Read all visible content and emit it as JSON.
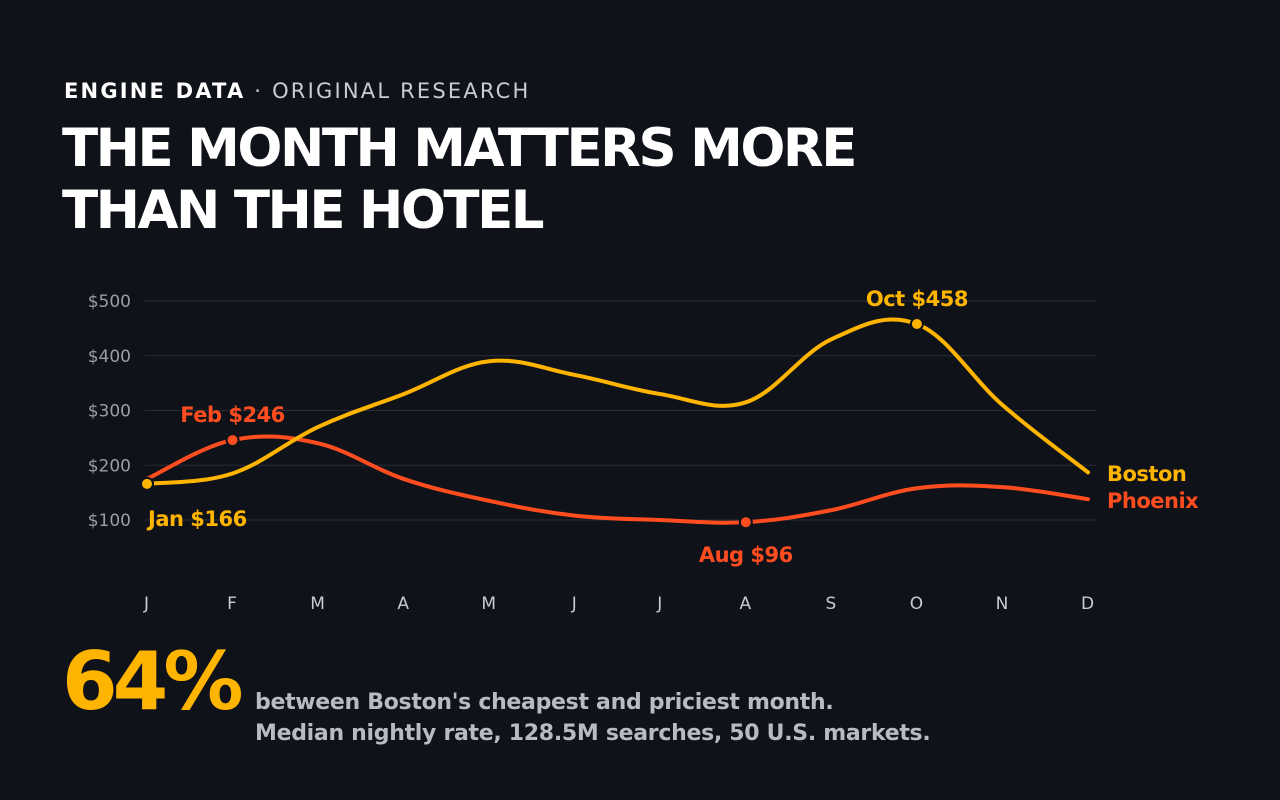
{
  "header": {
    "brand": "ENGINE DATA",
    "separator": "·",
    "section": "ORIGINAL RESEARCH",
    "title_line1": "THE MONTH MATTERS MORE",
    "title_line2": "THAN THE HOTEL"
  },
  "colors": {
    "background": "#10121a",
    "boston": "#ffb400",
    "phoenix": "#ff4d1f",
    "grid": "#2a2d36",
    "tick": "#9a9ea8",
    "month_tick": "#c9ccd3"
  },
  "chart_data": {
    "type": "line",
    "title": "",
    "xlabel": "",
    "ylabel": "",
    "categories": [
      "J",
      "F",
      "M",
      "A",
      "M",
      "J",
      "J",
      "A",
      "S",
      "O",
      "N",
      "D"
    ],
    "ylim": [
      100,
      500
    ],
    "yticks": [
      100,
      200,
      300,
      400,
      500
    ],
    "ytick_labels": [
      "$100",
      "$200",
      "$300",
      "$400",
      "$500"
    ],
    "grid": true,
    "legend": "end-of-line labels",
    "series": [
      {
        "name": "Boston",
        "color": "#ffb400",
        "values": [
          166,
          185,
          270,
          330,
          390,
          365,
          330,
          315,
          430,
          458,
          310,
          187
        ]
      },
      {
        "name": "Phoenix",
        "color": "#ff4d1f",
        "values": [
          175,
          246,
          240,
          175,
          135,
          108,
          100,
          96,
          118,
          158,
          160,
          138
        ]
      }
    ],
    "annotations": [
      {
        "series": "Boston",
        "index": 0,
        "label": "Jan $166",
        "placement": "below-right"
      },
      {
        "series": "Phoenix",
        "index": 1,
        "label": "Feb $246",
        "placement": "above"
      },
      {
        "series": "Phoenix",
        "index": 7,
        "label": "Aug $96",
        "placement": "below"
      },
      {
        "series": "Boston",
        "index": 9,
        "label": "Oct $458",
        "placement": "above"
      }
    ]
  },
  "stat": {
    "value": "64%",
    "line1": "between Boston's cheapest and priciest month.",
    "line2": "Median nightly rate, 128.5M searches, 50 U.S. markets."
  }
}
